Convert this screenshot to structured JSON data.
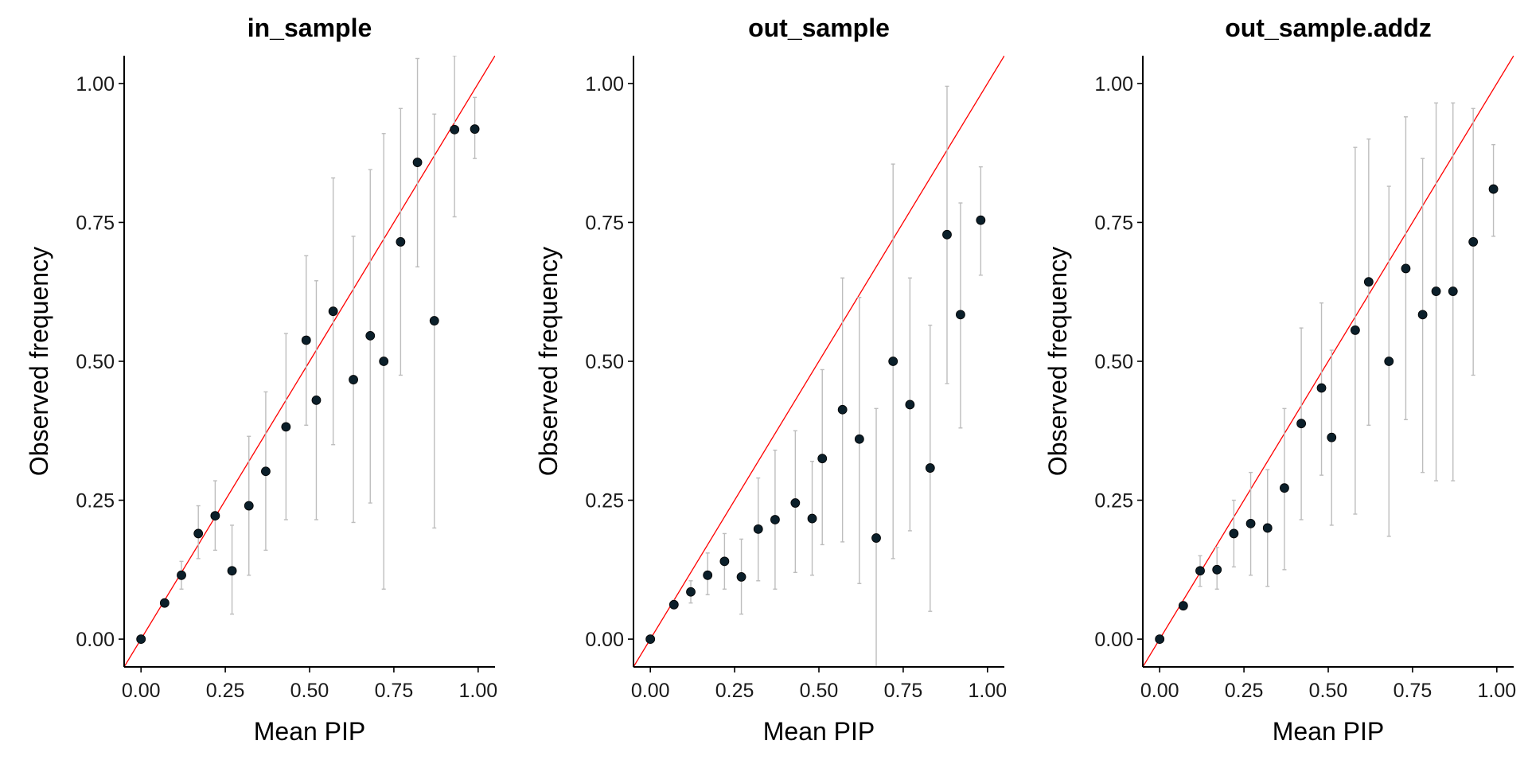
{
  "chart_data": [
    {
      "type": "scatter",
      "title": "in_sample",
      "xlabel": "Mean PIP",
      "ylabel": "Observed frequency",
      "xlim": [
        -0.05,
        1.05
      ],
      "ylim": [
        -0.05,
        1.05
      ],
      "xticks": [
        "0.00",
        "0.25",
        "0.50",
        "0.75",
        "1.00"
      ],
      "yticks": [
        "0.00",
        "0.25",
        "0.50",
        "0.75",
        "1.00"
      ],
      "reference_line": "y = x",
      "colors": {
        "points": "#0b1f2a",
        "error_bars": "#bdbdbd",
        "reference_line": "#ff0000"
      },
      "points": [
        {
          "x": 0.0,
          "y": 0.0,
          "lo": 0.0,
          "hi": 0.0
        },
        {
          "x": 0.07,
          "y": 0.065,
          "lo": 0.06,
          "hi": 0.07
        },
        {
          "x": 0.12,
          "y": 0.115,
          "lo": 0.09,
          "hi": 0.14
        },
        {
          "x": 0.17,
          "y": 0.19,
          "lo": 0.145,
          "hi": 0.24
        },
        {
          "x": 0.22,
          "y": 0.222,
          "lo": 0.16,
          "hi": 0.285
        },
        {
          "x": 0.27,
          "y": 0.123,
          "lo": 0.045,
          "hi": 0.205
        },
        {
          "x": 0.32,
          "y": 0.24,
          "lo": 0.115,
          "hi": 0.365
        },
        {
          "x": 0.37,
          "y": 0.302,
          "lo": 0.16,
          "hi": 0.445
        },
        {
          "x": 0.43,
          "y": 0.382,
          "lo": 0.215,
          "hi": 0.55
        },
        {
          "x": 0.49,
          "y": 0.538,
          "lo": 0.385,
          "hi": 0.69
        },
        {
          "x": 0.52,
          "y": 0.43,
          "lo": 0.215,
          "hi": 0.645
        },
        {
          "x": 0.57,
          "y": 0.59,
          "lo": 0.35,
          "hi": 0.83
        },
        {
          "x": 0.63,
          "y": 0.467,
          "lo": 0.21,
          "hi": 0.725
        },
        {
          "x": 0.68,
          "y": 0.546,
          "lo": 0.245,
          "hi": 0.845
        },
        {
          "x": 0.72,
          "y": 0.5,
          "lo": 0.09,
          "hi": 0.91
        },
        {
          "x": 0.77,
          "y": 0.715,
          "lo": 0.475,
          "hi": 0.955
        },
        {
          "x": 0.82,
          "y": 0.858,
          "lo": 0.67,
          "hi": 1.045
        },
        {
          "x": 0.87,
          "y": 0.573,
          "lo": 0.2,
          "hi": 0.945
        },
        {
          "x": 0.93,
          "y": 0.917,
          "lo": 0.76,
          "hi": 1.05
        },
        {
          "x": 0.99,
          "y": 0.918,
          "lo": 0.865,
          "hi": 0.975
        }
      ]
    },
    {
      "type": "scatter",
      "title": "out_sample",
      "xlabel": "Mean PIP",
      "ylabel": "Observed frequency",
      "xlim": [
        -0.05,
        1.05
      ],
      "ylim": [
        -0.05,
        1.05
      ],
      "xticks": [
        "0.00",
        "0.25",
        "0.50",
        "0.75",
        "1.00"
      ],
      "yticks": [
        "0.00",
        "0.25",
        "0.50",
        "0.75",
        "1.00"
      ],
      "reference_line": "y = x",
      "colors": {
        "points": "#0b1f2a",
        "error_bars": "#bdbdbd",
        "reference_line": "#ff0000"
      },
      "points": [
        {
          "x": 0.0,
          "y": 0.0,
          "lo": 0.0,
          "hi": 0.0
        },
        {
          "x": 0.07,
          "y": 0.062,
          "lo": 0.055,
          "hi": 0.07
        },
        {
          "x": 0.12,
          "y": 0.085,
          "lo": 0.065,
          "hi": 0.105
        },
        {
          "x": 0.17,
          "y": 0.115,
          "lo": 0.08,
          "hi": 0.155
        },
        {
          "x": 0.22,
          "y": 0.14,
          "lo": 0.09,
          "hi": 0.19
        },
        {
          "x": 0.27,
          "y": 0.112,
          "lo": 0.045,
          "hi": 0.18
        },
        {
          "x": 0.32,
          "y": 0.198,
          "lo": 0.105,
          "hi": 0.29
        },
        {
          "x": 0.37,
          "y": 0.215,
          "lo": 0.09,
          "hi": 0.34
        },
        {
          "x": 0.43,
          "y": 0.245,
          "lo": 0.12,
          "hi": 0.375
        },
        {
          "x": 0.48,
          "y": 0.217,
          "lo": 0.115,
          "hi": 0.32
        },
        {
          "x": 0.51,
          "y": 0.325,
          "lo": 0.17,
          "hi": 0.485
        },
        {
          "x": 0.57,
          "y": 0.413,
          "lo": 0.175,
          "hi": 0.65
        },
        {
          "x": 0.62,
          "y": 0.36,
          "lo": 0.1,
          "hi": 0.615
        },
        {
          "x": 0.67,
          "y": 0.182,
          "lo": -0.05,
          "hi": 0.415
        },
        {
          "x": 0.72,
          "y": 0.5,
          "lo": 0.145,
          "hi": 0.855
        },
        {
          "x": 0.77,
          "y": 0.422,
          "lo": 0.195,
          "hi": 0.65
        },
        {
          "x": 0.83,
          "y": 0.308,
          "lo": 0.05,
          "hi": 0.565
        },
        {
          "x": 0.88,
          "y": 0.728,
          "lo": 0.46,
          "hi": 0.995
        },
        {
          "x": 0.92,
          "y": 0.584,
          "lo": 0.38,
          "hi": 0.785
        },
        {
          "x": 0.98,
          "y": 0.754,
          "lo": 0.655,
          "hi": 0.85
        }
      ]
    },
    {
      "type": "scatter",
      "title": "out_sample.addz",
      "xlabel": "Mean PIP",
      "ylabel": "Observed frequency",
      "xlim": [
        -0.05,
        1.05
      ],
      "ylim": [
        -0.05,
        1.05
      ],
      "xticks": [
        "0.00",
        "0.25",
        "0.50",
        "0.75",
        "1.00"
      ],
      "yticks": [
        "0.00",
        "0.25",
        "0.50",
        "0.75",
        "1.00"
      ],
      "reference_line": "y = x",
      "colors": {
        "points": "#0b1f2a",
        "error_bars": "#bdbdbd",
        "reference_line": "#ff0000"
      },
      "points": [
        {
          "x": 0.0,
          "y": 0.0,
          "lo": 0.0,
          "hi": 0.0
        },
        {
          "x": 0.07,
          "y": 0.06,
          "lo": 0.053,
          "hi": 0.067
        },
        {
          "x": 0.12,
          "y": 0.123,
          "lo": 0.095,
          "hi": 0.15
        },
        {
          "x": 0.17,
          "y": 0.125,
          "lo": 0.09,
          "hi": 0.165
        },
        {
          "x": 0.22,
          "y": 0.19,
          "lo": 0.13,
          "hi": 0.25
        },
        {
          "x": 0.27,
          "y": 0.208,
          "lo": 0.115,
          "hi": 0.3
        },
        {
          "x": 0.32,
          "y": 0.2,
          "lo": 0.095,
          "hi": 0.305
        },
        {
          "x": 0.37,
          "y": 0.272,
          "lo": 0.125,
          "hi": 0.415
        },
        {
          "x": 0.42,
          "y": 0.388,
          "lo": 0.215,
          "hi": 0.56
        },
        {
          "x": 0.48,
          "y": 0.452,
          "lo": 0.295,
          "hi": 0.605
        },
        {
          "x": 0.51,
          "y": 0.363,
          "lo": 0.205,
          "hi": 0.52
        },
        {
          "x": 0.58,
          "y": 0.556,
          "lo": 0.225,
          "hi": 0.885
        },
        {
          "x": 0.62,
          "y": 0.643,
          "lo": 0.385,
          "hi": 0.9
        },
        {
          "x": 0.68,
          "y": 0.5,
          "lo": 0.185,
          "hi": 0.815
        },
        {
          "x": 0.73,
          "y": 0.667,
          "lo": 0.395,
          "hi": 0.94
        },
        {
          "x": 0.78,
          "y": 0.584,
          "lo": 0.3,
          "hi": 0.865
        },
        {
          "x": 0.82,
          "y": 0.626,
          "lo": 0.285,
          "hi": 0.965
        },
        {
          "x": 0.87,
          "y": 0.626,
          "lo": 0.285,
          "hi": 0.965
        },
        {
          "x": 0.93,
          "y": 0.715,
          "lo": 0.475,
          "hi": 0.955
        },
        {
          "x": 0.99,
          "y": 0.81,
          "lo": 0.725,
          "hi": 0.89
        }
      ]
    }
  ]
}
